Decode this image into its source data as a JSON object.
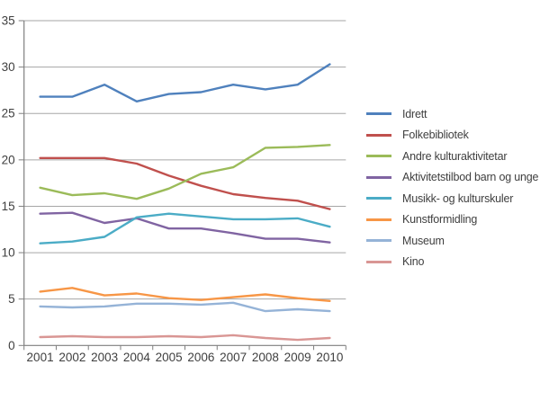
{
  "chart_data": {
    "type": "line",
    "title": "",
    "xlabel": "",
    "ylabel": "",
    "categories": [
      "2001",
      "2002",
      "2003",
      "2004",
      "2005",
      "2006",
      "2007",
      "2008",
      "2009",
      "2010"
    ],
    "series": [
      {
        "name": "Idrett",
        "color": "#4F81BD",
        "values": [
          26.8,
          26.8,
          28.1,
          26.3,
          27.1,
          27.3,
          28.1,
          27.6,
          28.1,
          30.3
        ]
      },
      {
        "name": "Folkebibliotek",
        "color": "#C0504D",
        "values": [
          20.2,
          20.2,
          20.2,
          19.6,
          18.3,
          17.2,
          16.3,
          15.9,
          15.6,
          14.7
        ]
      },
      {
        "name": "Andre kulturaktivitetar",
        "color": "#9BBB59",
        "values": [
          17.0,
          16.2,
          16.4,
          15.8,
          16.9,
          18.5,
          19.2,
          21.3,
          21.4,
          21.6
        ]
      },
      {
        "name": "Aktivitetstilbod barn og unge",
        "color": "#8064A2",
        "values": [
          14.2,
          14.3,
          13.2,
          13.7,
          12.6,
          12.6,
          12.1,
          11.5,
          11.5,
          11.1
        ]
      },
      {
        "name": "Musikk- og kulturskuler",
        "color": "#4BACC6",
        "values": [
          11.0,
          11.2,
          11.7,
          13.8,
          14.2,
          13.9,
          13.6,
          13.6,
          13.7,
          12.8
        ]
      },
      {
        "name": "Kunstformidling",
        "color": "#F79646",
        "values": [
          5.8,
          6.2,
          5.4,
          5.6,
          5.1,
          4.9,
          5.2,
          5.5,
          5.1,
          4.8
        ]
      },
      {
        "name": "Museum",
        "color": "#95B3D7",
        "values": [
          4.2,
          4.1,
          4.2,
          4.5,
          4.5,
          4.4,
          4.6,
          3.7,
          3.9,
          3.7
        ]
      },
      {
        "name": "Kino",
        "color": "#D99694",
        "values": [
          0.9,
          1.0,
          0.9,
          0.9,
          1.0,
          0.9,
          1.1,
          0.8,
          0.6,
          0.8
        ]
      }
    ],
    "ylim": [
      0,
      35
    ],
    "ytick_step": 5,
    "grid": "horizontal",
    "legend_position": "right"
  },
  "colors": {
    "background": "#ffffff",
    "gridline": "#a6a6a6",
    "axis": "#7f7f7f",
    "tick_text": "#3f3f3f"
  }
}
